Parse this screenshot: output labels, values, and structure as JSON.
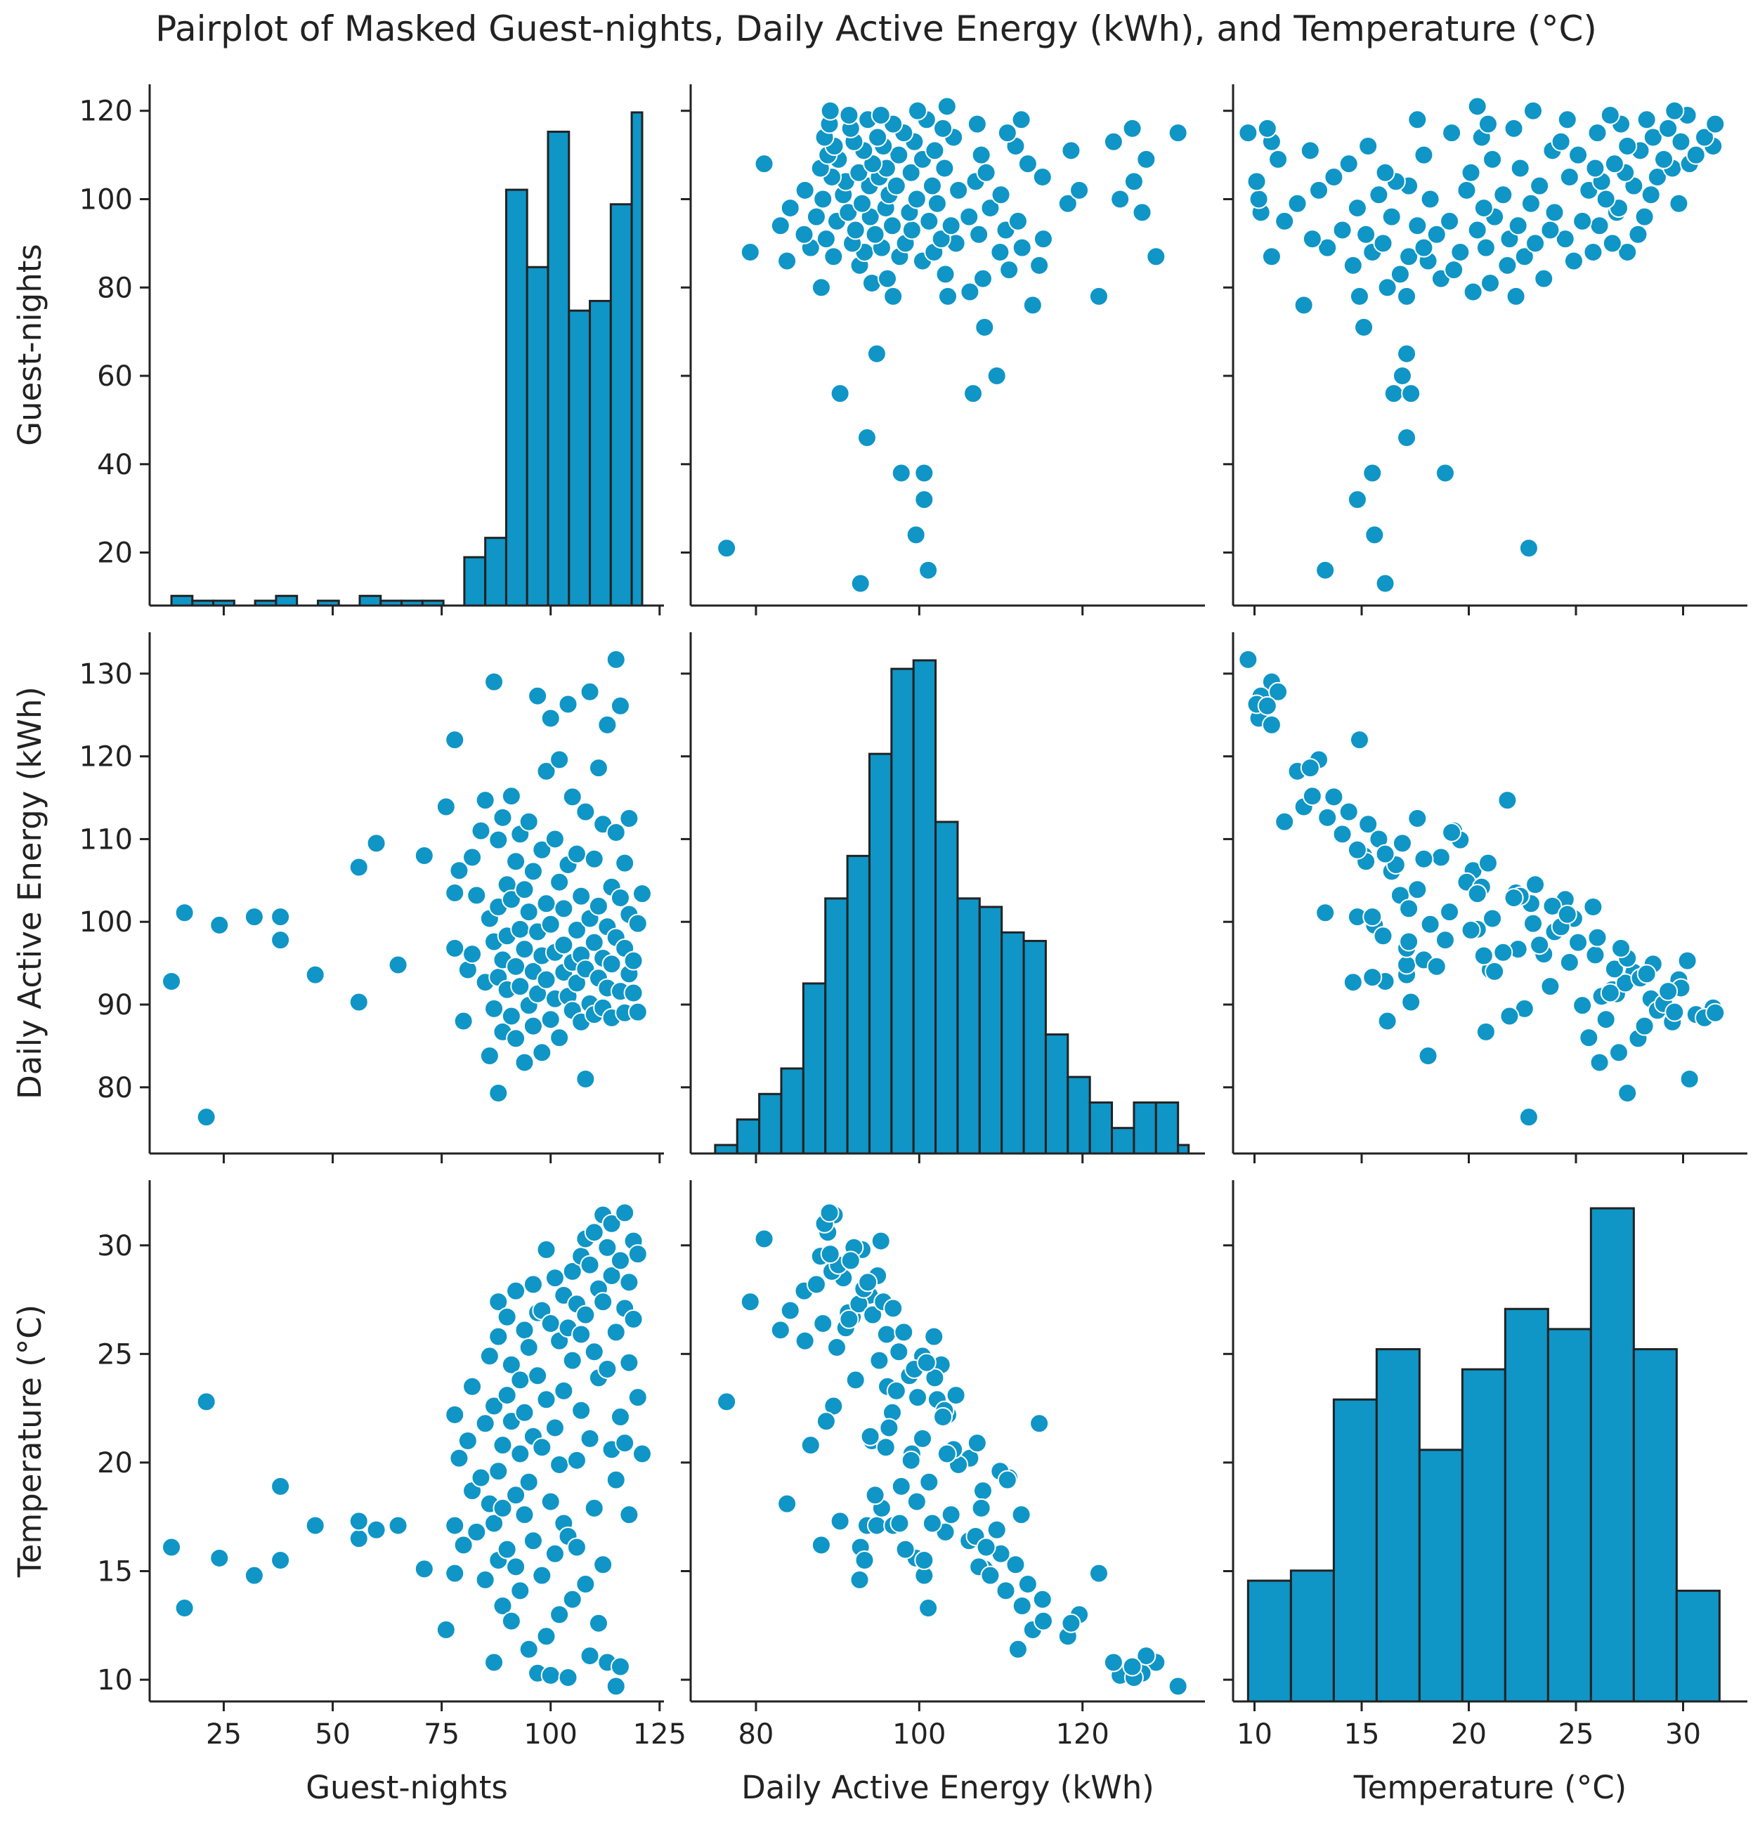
{
  "title": "Pairplot of Masked Guest-nights, Daily Active Energy (kWh), and Temperature (°C)",
  "colors": {
    "fill": "#0f95c6",
    "edge": "#222222",
    "point_edge": "#ffffff"
  },
  "variables": [
    {
      "key": "guest",
      "label": "Guest-nights",
      "range": [
        8,
        126
      ],
      "ticks": [
        25,
        50,
        75,
        100,
        125
      ],
      "yticks": [
        20,
        40,
        60,
        80,
        100,
        120
      ]
    },
    {
      "key": "energy",
      "label": "Daily Active Energy (kWh)",
      "range": [
        72,
        135
      ],
      "ticks": [
        80,
        100,
        120
      ],
      "yticks": [
        80,
        90,
        100,
        110,
        120,
        130
      ]
    },
    {
      "key": "temp",
      "label": "Temperature (°C)",
      "range": [
        9,
        33
      ],
      "ticks": [
        10,
        15,
        20,
        25,
        30
      ],
      "yticks": [
        10,
        15,
        20,
        25,
        30
      ]
    }
  ],
  "chart_data": {
    "type": "scatter",
    "title": "Pairplot of Masked Guest-nights, Daily Active Energy (kWh), and Temperature (°C)",
    "grid": false,
    "histograms": {
      "guest": {
        "bin_edges": [
          13,
          17.8,
          22.6,
          27.4,
          32.2,
          37,
          41.8,
          46.6,
          51.4,
          56.2,
          61,
          65.8,
          70.6,
          75.4,
          80.2,
          85,
          89.8,
          94.6,
          99.4,
          104.2,
          109,
          113.8,
          118.6,
          121
        ],
        "heights": [
          2,
          1,
          1,
          0,
          1,
          2,
          0,
          1,
          0,
          2,
          1,
          1,
          1,
          0,
          10,
          14,
          86,
          70,
          98,
          61,
          63,
          83,
          102
        ]
      },
      "energy": {
        "bin_edges": [
          75,
          77.7,
          80.4,
          83.1,
          85.8,
          88.5,
          91.2,
          93.9,
          96.6,
          99.3,
          102,
          104.7,
          107.4,
          110.1,
          112.8,
          115.5,
          118.2,
          120.9,
          123.6,
          126.3,
          129,
          131.7,
          133
        ],
        "heights": [
          1,
          4,
          7,
          10,
          20,
          30,
          35,
          47,
          57,
          58,
          39,
          30,
          29,
          26,
          25,
          14,
          9,
          6,
          3,
          6,
          6,
          1
        ]
      },
      "temp": {
        "bin_edges": [
          9.7,
          11.7,
          13.7,
          15.7,
          17.7,
          19.7,
          21.7,
          23.7,
          25.7,
          27.7,
          29.7,
          31.7
        ],
        "heights": [
          12,
          13,
          30,
          35,
          25,
          33,
          39,
          37,
          49,
          35,
          11
        ]
      }
    },
    "points": [
      [
        13,
        92.8,
        16.1
      ],
      [
        16,
        101.1,
        13.3
      ],
      [
        21,
        76.4,
        22.8
      ],
      [
        24,
        99.6,
        15.6
      ],
      [
        32,
        100.6,
        14.8
      ],
      [
        38,
        100.6,
        15.5
      ],
      [
        38,
        97.8,
        18.9
      ],
      [
        46,
        93.6,
        17.1
      ],
      [
        56,
        106.6,
        16.5
      ],
      [
        56,
        90.3,
        17.3
      ],
      [
        60,
        109.5,
        16.9
      ],
      [
        65,
        94.8,
        17.1
      ],
      [
        71,
        108.0,
        15.1
      ],
      [
        76,
        113.9,
        12.3
      ],
      [
        78,
        96.8,
        17.1
      ],
      [
        78,
        122.0,
        14.9
      ],
      [
        78,
        103.5,
        22.2
      ],
      [
        79,
        106.2,
        20.2
      ],
      [
        80,
        88.0,
        16.2
      ],
      [
        81,
        94.2,
        21.0
      ],
      [
        82,
        107.8,
        18.7
      ],
      [
        82,
        96.1,
        23.5
      ],
      [
        83,
        103.2,
        16.8
      ],
      [
        84,
        111.0,
        19.3
      ],
      [
        85,
        114.7,
        21.8
      ],
      [
        85,
        92.7,
        14.6
      ],
      [
        86,
        83.8,
        18.1
      ],
      [
        86,
        100.4,
        24.9
      ],
      [
        87,
        129.0,
        10.8
      ],
      [
        87,
        97.6,
        17.2
      ],
      [
        87,
        89.5,
        22.6
      ],
      [
        88,
        79.3,
        27.4
      ],
      [
        88,
        109.9,
        19.6
      ],
      [
        88,
        93.3,
        15.5
      ],
      [
        88,
        101.8,
        25.8
      ],
      [
        89,
        86.7,
        20.8
      ],
      [
        89,
        112.6,
        13.4
      ],
      [
        89,
        95.4,
        17.9
      ],
      [
        90,
        104.5,
        23.1
      ],
      [
        90,
        91.8,
        26.7
      ],
      [
        90,
        98.3,
        16.0
      ],
      [
        91,
        115.2,
        12.7
      ],
      [
        91,
        88.6,
        21.9
      ],
      [
        91,
        102.7,
        24.5
      ],
      [
        92,
        94.6,
        18.5
      ],
      [
        92,
        107.3,
        15.2
      ],
      [
        92,
        85.9,
        27.9
      ],
      [
        93,
        99.1,
        20.4
      ],
      [
        93,
        110.6,
        14.1
      ],
      [
        93,
        92.2,
        23.8
      ],
      [
        94,
        83.0,
        26.1
      ],
      [
        94,
        103.9,
        17.6
      ],
      [
        94,
        96.7,
        22.3
      ],
      [
        95,
        112.1,
        11.4
      ],
      [
        95,
        89.9,
        25.3
      ],
      [
        95,
        101.2,
        19.1
      ],
      [
        96,
        87.4,
        28.2
      ],
      [
        96,
        106.1,
        16.4
      ],
      [
        96,
        94.0,
        21.2
      ],
      [
        97,
        127.3,
        10.3
      ],
      [
        97,
        98.8,
        24.0
      ],
      [
        97,
        91.3,
        26.9
      ],
      [
        98,
        108.7,
        14.8
      ],
      [
        98,
        95.9,
        20.7
      ],
      [
        98,
        84.2,
        27.0
      ],
      [
        99,
        118.2,
        12.0
      ],
      [
        99,
        102.2,
        22.9
      ],
      [
        99,
        93.0,
        29.8
      ],
      [
        100,
        99.7,
        18.2
      ],
      [
        100,
        88.2,
        26.4
      ],
      [
        100,
        124.6,
        10.2
      ],
      [
        101,
        96.3,
        21.6
      ],
      [
        101,
        110.0,
        15.8
      ],
      [
        101,
        90.7,
        28.5
      ],
      [
        102,
        104.8,
        19.9
      ],
      [
        102,
        86.0,
        25.6
      ],
      [
        102,
        119.6,
        13.0
      ],
      [
        103,
        97.2,
        23.3
      ],
      [
        103,
        93.9,
        27.7
      ],
      [
        103,
        101.6,
        17.2
      ],
      [
        104,
        126.3,
        10.1
      ],
      [
        104,
        91.0,
        26.2
      ],
      [
        104,
        106.9,
        16.6
      ],
      [
        105,
        95.1,
        24.7
      ],
      [
        105,
        89.3,
        28.8
      ],
      [
        105,
        115.1,
        13.7
      ],
      [
        106,
        99.0,
        20.1
      ],
      [
        106,
        92.6,
        27.3
      ],
      [
        106,
        108.2,
        16.1
      ],
      [
        107,
        87.9,
        29.5
      ],
      [
        107,
        103.1,
        22.4
      ],
      [
        107,
        96.0,
        25.9
      ],
      [
        108,
        81.0,
        30.3
      ],
      [
        108,
        113.3,
        14.4
      ],
      [
        108,
        94.3,
        26.8
      ],
      [
        109,
        100.4,
        21.1
      ],
      [
        109,
        90.1,
        29.1
      ],
      [
        109,
        127.8,
        11.1
      ],
      [
        110,
        97.5,
        25.1
      ],
      [
        110,
        88.8,
        30.6
      ],
      [
        110,
        107.6,
        17.9
      ],
      [
        111,
        93.2,
        28.0
      ],
      [
        111,
        118.6,
        12.6
      ],
      [
        111,
        101.9,
        23.9
      ],
      [
        112,
        95.6,
        27.4
      ],
      [
        112,
        89.6,
        31.4
      ],
      [
        112,
        111.8,
        15.3
      ],
      [
        113,
        99.4,
        24.3
      ],
      [
        113,
        92.0,
        29.9
      ],
      [
        113,
        123.8,
        10.8
      ],
      [
        114,
        104.2,
        20.6
      ],
      [
        114,
        94.9,
        28.6
      ],
      [
        114,
        88.4,
        31.0
      ],
      [
        115,
        131.7,
        9.7
      ],
      [
        115,
        98.1,
        26.0
      ],
      [
        115,
        110.8,
        19.2
      ],
      [
        116,
        91.6,
        29.3
      ],
      [
        116,
        102.9,
        22.1
      ],
      [
        116,
        126.1,
        10.6
      ],
      [
        117,
        96.8,
        27.1
      ],
      [
        117,
        89.0,
        31.5
      ],
      [
        117,
        107.1,
        20.9
      ],
      [
        118,
        93.7,
        28.3
      ],
      [
        118,
        100.9,
        24.6
      ],
      [
        118,
        112.5,
        17.6
      ],
      [
        119,
        95.3,
        30.2
      ],
      [
        119,
        91.4,
        26.6
      ],
      [
        120,
        99.8,
        23.0
      ],
      [
        120,
        89.1,
        29.6
      ],
      [
        121,
        103.4,
        20.4
      ]
    ]
  }
}
